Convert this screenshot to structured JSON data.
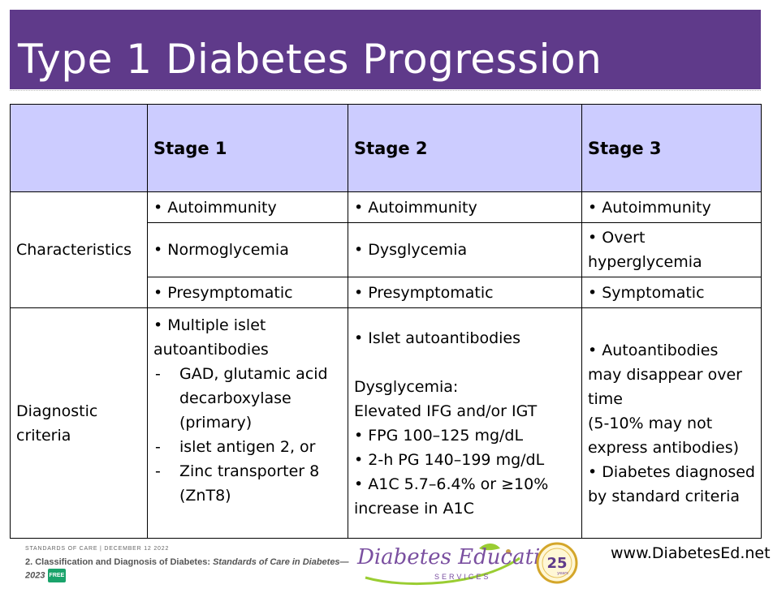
{
  "title": "Type 1 Diabetes Progression",
  "colors": {
    "title_bg": "#5f3a8a",
    "header_bg": "#ccccff",
    "logo_purple": "#7a4fa0",
    "logo_green": "#9acd32"
  },
  "table": {
    "headers": [
      "",
      "Stage 1",
      "Stage 2",
      "Stage 3"
    ],
    "characteristics_label": "Characteristics",
    "characteristics": [
      [
        "• Autoimmunity",
        "• Autoimmunity",
        "• Autoimmunity"
      ],
      [
        "• Normoglycemia",
        "• Dysglycemia",
        "• Overt hyperglycemia"
      ],
      [
        "• Presymptomatic",
        "• Presymptomatic",
        "• Symptomatic"
      ]
    ],
    "diagnostic_label": "Diagnostic criteria",
    "diagnostic": {
      "stage1": {
        "lead": "• Multiple islet autoantibodies",
        "sub": [
          "GAD, glutamic acid decarboxylase (primary)",
          "islet antigen 2, or",
          "Zinc transporter 8 (ZnT8)"
        ],
        "dash": "-"
      },
      "stage2": {
        "lead": "• Islet autoantibodies",
        "lines": [
          "Dysglycemia:",
          "Elevated IFG and/or IGT",
          "• FPG 100–125 mg/dL",
          "• 2-h PG 140–199 mg/dL",
          "• A1C 5.7–6.4% or ≥10% increase in A1C"
        ]
      },
      "stage3": {
        "lines": [
          "• Autoantibodies may disappear over time",
          "(5-10% may not express antibodies)",
          "• Diabetes diagnosed by standard criteria"
        ]
      }
    }
  },
  "footer": {
    "header_line": "STANDARDS OF CARE | DECEMBER 12 2022",
    "ref_bold": "2. Classification and Diagnosis of Diabetes: ",
    "ref_italic": "Standards of Care in Diabetes—2023",
    "free": "FREE",
    "logo_main": "Diabetes Education",
    "logo_sub": "SERVICES",
    "badge": "25",
    "badge_small": "years",
    "website": "www.DiabetesEd.net"
  }
}
